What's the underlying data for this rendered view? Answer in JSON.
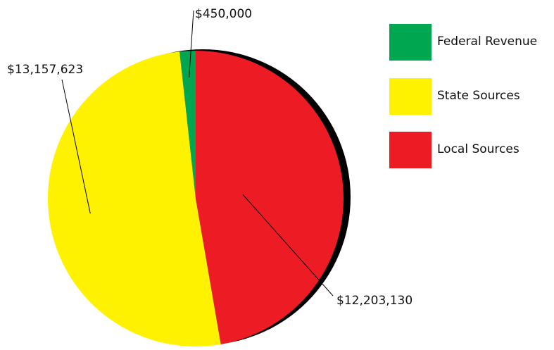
{
  "chart_data": {
    "type": "pie",
    "categories": [
      "Federal Revenue",
      "State Sources",
      "Local Sources"
    ],
    "values": [
      450000,
      13157623,
      12203130
    ],
    "data_labels": [
      "$450,000",
      "$13,157,623",
      "$12,203,130"
    ],
    "colors": [
      "#00a650",
      "#fff200",
      "#ed1c24"
    ],
    "legend": "right",
    "title": ""
  }
}
